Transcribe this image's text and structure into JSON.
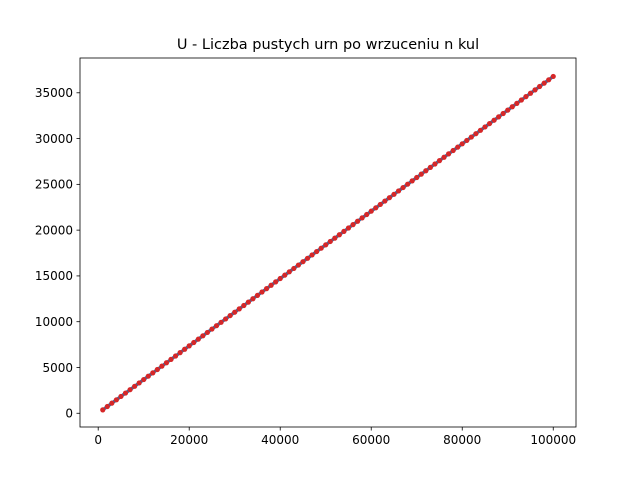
{
  "chart_data": {
    "type": "scatter",
    "title": "U - Liczba pustych urn po wrzuceniu n kul",
    "xlabel": "",
    "ylabel": "",
    "xlim": [
      -4000,
      105000
    ],
    "ylim": [
      -1500,
      38800
    ],
    "xticks": [
      0,
      20000,
      40000,
      60000,
      80000,
      100000
    ],
    "yticks": [
      0,
      5000,
      10000,
      15000,
      20000,
      25000,
      30000,
      35000
    ],
    "grid": false,
    "colors": {
      "points": "#d62728",
      "trend": "#1f77b4"
    },
    "x": [
      1000,
      2000,
      3000,
      4000,
      5000,
      6000,
      7000,
      8000,
      9000,
      10000,
      11000,
      12000,
      13000,
      14000,
      15000,
      16000,
      17000,
      18000,
      19000,
      20000,
      21000,
      22000,
      23000,
      24000,
      25000,
      26000,
      27000,
      28000,
      29000,
      30000,
      31000,
      32000,
      33000,
      34000,
      35000,
      36000,
      37000,
      38000,
      39000,
      40000,
      41000,
      42000,
      43000,
      44000,
      45000,
      46000,
      47000,
      48000,
      49000,
      50000,
      51000,
      52000,
      53000,
      54000,
      55000,
      56000,
      57000,
      58000,
      59000,
      60000,
      61000,
      62000,
      63000,
      64000,
      65000,
      66000,
      67000,
      68000,
      69000,
      70000,
      71000,
      72000,
      73000,
      74000,
      75000,
      76000,
      77000,
      78000,
      79000,
      80000,
      81000,
      82000,
      83000,
      84000,
      85000,
      86000,
      87000,
      88000,
      89000,
      90000,
      91000,
      92000,
      93000,
      94000,
      95000,
      96000,
      97000,
      98000,
      99000,
      100000
    ],
    "y": [
      368,
      736,
      1104,
      1471,
      1839,
      2207,
      2575,
      2943,
      3311,
      3679,
      4047,
      4414,
      4782,
      5150,
      5518,
      5886,
      6254,
      6622,
      6990,
      7358,
      7725,
      8093,
      8461,
      8829,
      9197,
      9565,
      9933,
      10300,
      10668,
      11036,
      11404,
      11772,
      12140,
      12508,
      12876,
      13244,
      13611,
      13979,
      14347,
      14715,
      15083,
      15451,
      15819,
      16187,
      16554,
      16922,
      17290,
      17658,
      18026,
      18394,
      18762,
      19130,
      19497,
      19865,
      20233,
      20601,
      20969,
      21337,
      21705,
      22073,
      22440,
      22808,
      23176,
      23544,
      23912,
      24280,
      24648,
      25016,
      25383,
      25751,
      26119,
      26487,
      26855,
      27223,
      27591,
      27959,
      28326,
      28694,
      29062,
      29430,
      29798,
      30166,
      30534,
      30902,
      31269,
      31637,
      32005,
      32373,
      32741,
      33109,
      33477,
      33845,
      34212,
      34580,
      34948,
      35316,
      35684,
      36052,
      36420,
      36788
    ]
  }
}
